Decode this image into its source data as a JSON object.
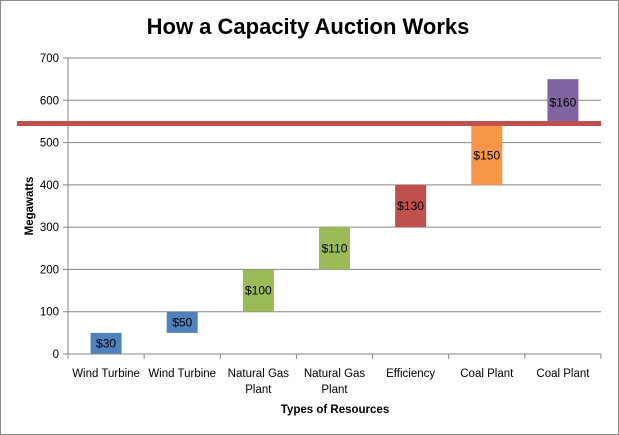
{
  "chart_data": {
    "type": "bar",
    "title": "How a Capacity Auction Works",
    "xlabel": "Types of Resources",
    "ylabel": "Megawatts",
    "ylim": [
      0,
      700
    ],
    "yticks": [
      "0",
      "100",
      "200",
      "300",
      "400",
      "500",
      "600",
      "700"
    ],
    "grid": true,
    "categories": [
      [
        "Wind Turbine"
      ],
      [
        "Wind Turbine"
      ],
      [
        "Natural Gas",
        "Plant"
      ],
      [
        "Natural Gas",
        "Plant"
      ],
      [
        "Efficiency"
      ],
      [
        "Coal Plant"
      ],
      [
        "Coal Plant"
      ]
    ],
    "bars": [
      {
        "start": 0,
        "end": 50,
        "label": "$30",
        "color": "#4f81bd"
      },
      {
        "start": 50,
        "end": 100,
        "label": "$50",
        "color": "#4f81bd"
      },
      {
        "start": 100,
        "end": 200,
        "label": "$100",
        "color": "#9bbb59"
      },
      {
        "start": 200,
        "end": 300,
        "label": "$110",
        "color": "#9bbb59"
      },
      {
        "start": 300,
        "end": 400,
        "label": "$130",
        "color": "#c0504d"
      },
      {
        "start": 400,
        "end": 540,
        "label": "$150",
        "color": "#f79646"
      },
      {
        "start": 540,
        "end": 650,
        "label": "$160",
        "color": "#8064a2"
      }
    ],
    "demand_line": {
      "value": 545,
      "color": "#c0504d"
    }
  }
}
